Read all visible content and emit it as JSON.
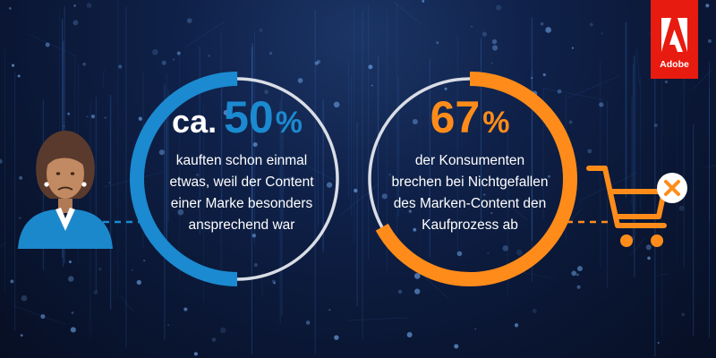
{
  "brand": {
    "name": "Adobe",
    "color": "#e81b10"
  },
  "left_stat": {
    "prefix": "ca.",
    "number": "50",
    "unit": "%",
    "fraction": 0.5,
    "color": "#1b8ad0",
    "lines": [
      "kauften schon einmal",
      "etwas, weil der Content",
      "einer Marke besonders",
      "ansprechend war"
    ],
    "icon": "woman-avatar-icon"
  },
  "right_stat": {
    "number": "67",
    "unit": "%",
    "fraction": 0.67,
    "color": "#ff8c1a",
    "lines": [
      "der Konsumenten",
      "brechen bei Nichtgefallen",
      "des Marken-Content den",
      "Kaufprozess ab"
    ],
    "icon": "shopping-cart-cancel-icon"
  },
  "colors": {
    "background": "#0b1630",
    "ring_track": "#d9dde5"
  }
}
